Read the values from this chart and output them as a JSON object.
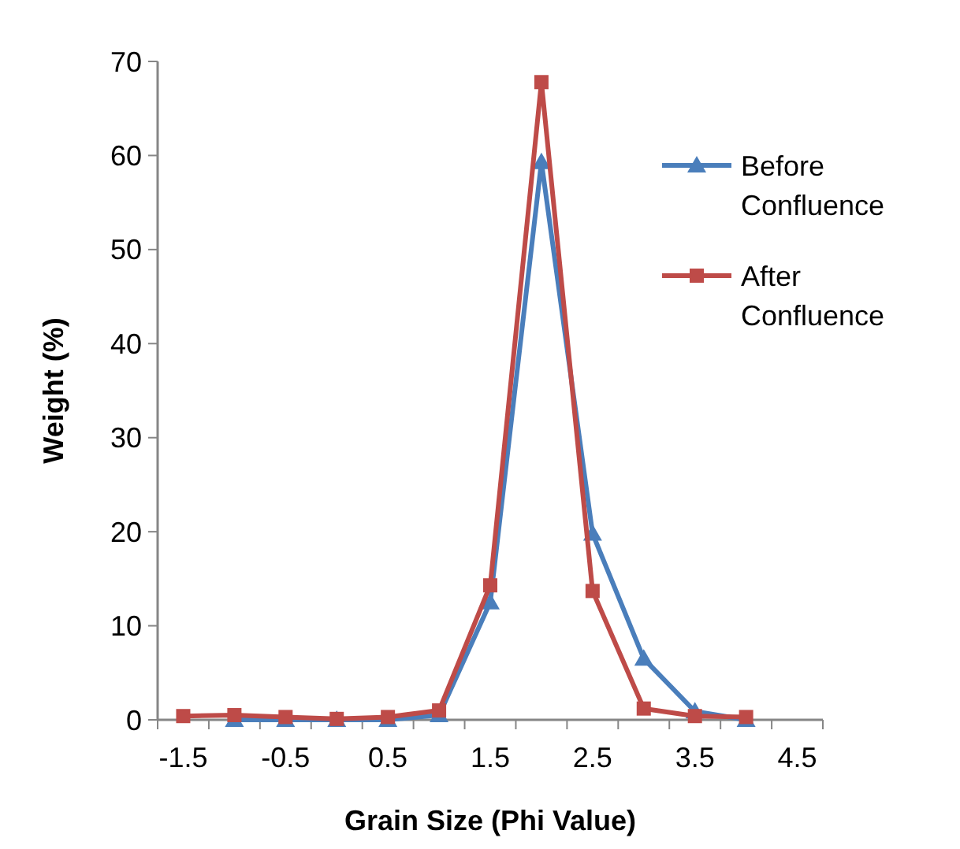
{
  "chart_data": {
    "type": "line",
    "xlabel": "Grain Size (Phi Value)",
    "ylabel": "Weight (%)",
    "categories": [
      "-1.5",
      null,
      "-0.5",
      null,
      "0.5",
      null,
      "1.5",
      null,
      "2.5",
      null,
      "3.5",
      null,
      "4.5"
    ],
    "series": [
      {
        "name": "Before Confluence",
        "color": "#4a7ebb",
        "marker": "triangle",
        "values": [
          null,
          0,
          0,
          0,
          0,
          0.5,
          12.5,
          59.3,
          19.8,
          6.5,
          0.9,
          0,
          null
        ]
      },
      {
        "name": "After Confluence",
        "color": "#be4b48",
        "marker": "square",
        "values": [
          0.4,
          0.5,
          0.3,
          0.1,
          0.3,
          1.0,
          14.3,
          67.8,
          13.7,
          1.2,
          0.4,
          0.3,
          null
        ]
      }
    ],
    "ylim": [
      0,
      70
    ],
    "yticks": [
      0,
      10,
      20,
      30,
      40,
      50,
      60,
      70
    ],
    "grid": false,
    "legend": "top right"
  }
}
